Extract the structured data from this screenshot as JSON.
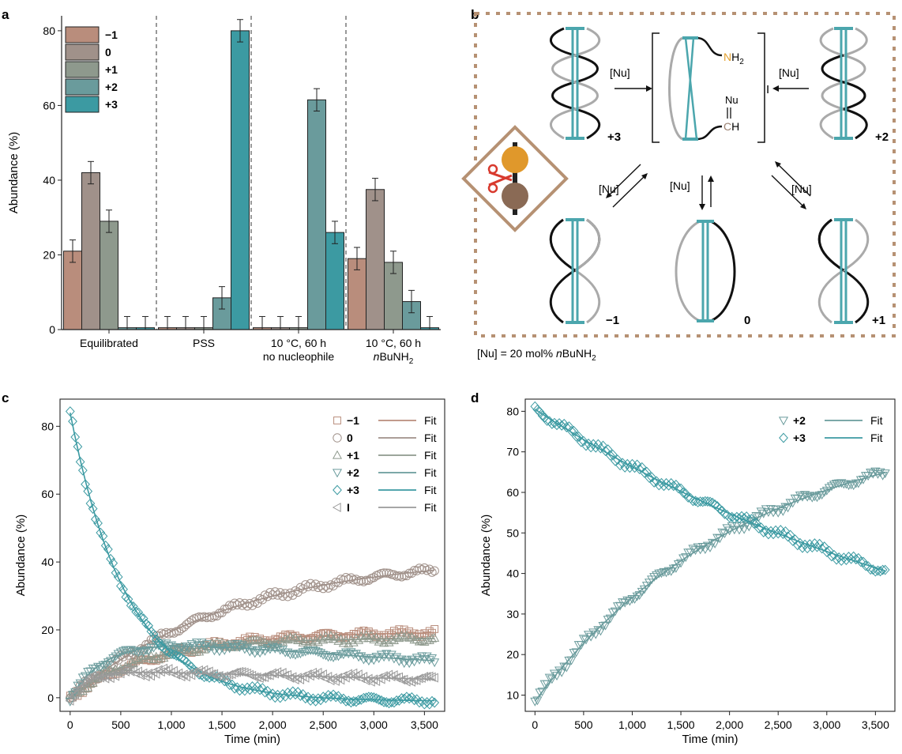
{
  "panel_labels": {
    "a": "a",
    "b": "b",
    "c": "c",
    "d": "d"
  },
  "colors": {
    "m1": "#b98d7c",
    "zero": "#a0918a",
    "p1": "#8e998d",
    "p2": "#6a9b9c",
    "p3": "#3c9aa2",
    "i": "#9a9a9a",
    "axis": "#222222",
    "frame": "#b69173",
    "nh": "#e3a12f",
    "teal": "#4ba6ad"
  },
  "chart_data": [
    {
      "id": "a",
      "type": "bar",
      "ylabel": "Abundance (%)",
      "ylim": [
        0,
        84
      ],
      "yticks": [
        0,
        20,
        40,
        60,
        80
      ],
      "categories": [
        {
          "lines": [
            {
              "t": "Equilibrated"
            }
          ]
        },
        {
          "lines": [
            {
              "t": "PSS"
            }
          ]
        },
        {
          "lines": [
            {
              "t": "10 °C, 60 h"
            },
            {
              "t": "no nucleophile"
            }
          ]
        },
        {
          "lines": [
            {
              "t": "10 °C, 60 h"
            },
            {
              "t": "nBuNH",
              "sub": "2",
              "italic_prefix": "n"
            }
          ]
        }
      ],
      "series": [
        {
          "name": "−1",
          "color_key": "m1",
          "values": [
            21,
            0.5,
            0.5,
            19
          ],
          "errors": [
            3,
            3,
            3,
            3
          ]
        },
        {
          "name": "0",
          "color_key": "zero",
          "values": [
            42,
            0.5,
            0.5,
            37.5
          ],
          "errors": [
            3,
            3,
            3,
            3
          ]
        },
        {
          "name": "+1",
          "color_key": "p1",
          "values": [
            29,
            0.5,
            0.5,
            18
          ],
          "errors": [
            3,
            3,
            3,
            3
          ]
        },
        {
          "name": "+2",
          "color_key": "p2",
          "values": [
            0.5,
            8.5,
            61.5,
            7.5
          ],
          "errors": [
            3,
            3,
            3,
            3
          ]
        },
        {
          "name": "+3",
          "color_key": "p3",
          "values": [
            0.5,
            80,
            26,
            0.5
          ],
          "errors": [
            3,
            3,
            3,
            3
          ]
        }
      ],
      "legend_placement": "top-left",
      "separators": "dashed"
    },
    {
      "id": "c",
      "type": "scatter",
      "xlabel": "Time (min)",
      "ylabel": "Abundance (%)",
      "xlim": [
        -100,
        3700
      ],
      "ylim": [
        -4,
        88
      ],
      "xticks": [
        {
          "v": 0,
          "t": "0"
        },
        {
          "v": 500,
          "t": "500"
        },
        {
          "v": 1000,
          "t": "1,000"
        },
        {
          "v": 1500,
          "t": "1,500"
        },
        {
          "v": 2000,
          "t": "2,000"
        },
        {
          "v": 2500,
          "t": "2,500"
        },
        {
          "v": 3000,
          "t": "3,000"
        },
        {
          "v": 3500,
          "t": "3,500"
        }
      ],
      "yticks": [
        0,
        20,
        40,
        60,
        80
      ],
      "legend_placement": "top-right",
      "series": [
        {
          "name": "−1",
          "marker": "square",
          "color_key": "m1",
          "fit_label": "Fit",
          "model": {
            "type": "rise",
            "start": 0,
            "plateau": 19.5,
            "tau": 900
          }
        },
        {
          "name": "0",
          "marker": "circle",
          "color_key": "zero",
          "fit_label": "Fit",
          "model": {
            "type": "rise",
            "start": 0,
            "plateau": 42,
            "tau": 1600
          }
        },
        {
          "name": "+1",
          "marker": "triangle-up",
          "color_key": "p1",
          "fit_label": "Fit",
          "model": {
            "type": "rise",
            "start": 0,
            "plateau": 17.5,
            "tau": 700
          }
        },
        {
          "name": "+2",
          "marker": "triangle-down",
          "color_key": "p2",
          "fit_label": "Fit",
          "model": {
            "type": "risefall",
            "amp": 18.5,
            "k1": 0.0025,
            "k2": 0.00016
          }
        },
        {
          "name": "+3",
          "marker": "diamond",
          "color_key": "p3",
          "fit_label": "Fit",
          "model": {
            "type": "decay",
            "start": 84,
            "end": -1,
            "tau": 560
          }
        },
        {
          "name": "I",
          "marker": "triangle-left",
          "color_key": "i",
          "fit_label": "Fit",
          "model": {
            "type": "risefall",
            "amp": 8,
            "k1": 0.005,
            "k2": 0.00012
          }
        }
      ],
      "x": {
        "start": 0,
        "end": 3600,
        "step": 25
      }
    },
    {
      "id": "d",
      "type": "scatter",
      "xlabel": "Time (min)",
      "ylabel": "Abundance (%)",
      "xlim": [
        -100,
        3700
      ],
      "ylim": [
        6,
        83
      ],
      "xticks": [
        {
          "v": 0,
          "t": "0"
        },
        {
          "v": 500,
          "t": "500"
        },
        {
          "v": 1000,
          "t": "1,000"
        },
        {
          "v": 1500,
          "t": "1,500"
        },
        {
          "v": 2000,
          "t": "2,000"
        },
        {
          "v": 2500,
          "t": "2,500"
        },
        {
          "v": 3000,
          "t": "3,000"
        },
        {
          "v": 3500,
          "t": "3,500"
        }
      ],
      "yticks": [
        10,
        20,
        30,
        40,
        50,
        60,
        70,
        80
      ],
      "legend_placement": "top-right",
      "series": [
        {
          "name": "+2",
          "marker": "triangle-down",
          "color_key": "p2",
          "fit_label": "Fit",
          "model": {
            "type": "rise",
            "start": 8.5,
            "plateau": 78.5,
            "tau": 2200
          }
        },
        {
          "name": "+3",
          "marker": "diamond",
          "color_key": "p3",
          "fit_label": "Fit",
          "model": {
            "type": "decay",
            "start": 80.5,
            "end": 5,
            "tau": 4800
          }
        }
      ],
      "x": {
        "start": 0,
        "end": 3600,
        "step": 25
      }
    }
  ],
  "scheme_b": {
    "nu": "[Nu]",
    "species_labels": {
      "p3": "+3",
      "p2": "+2",
      "m1": "−1",
      "zero": "0",
      "p1": "+1",
      "i": "I"
    },
    "nh2": {
      "n": "N",
      "h": "H",
      "sub": "2"
    },
    "aldehyde": {
      "nu": "Nu",
      "c": "C",
      "h": "H"
    },
    "footnote": {
      "pre": "[Nu] = 20 mol% ",
      "n": "n",
      "mid": "BuNH",
      "sub": "2"
    }
  }
}
